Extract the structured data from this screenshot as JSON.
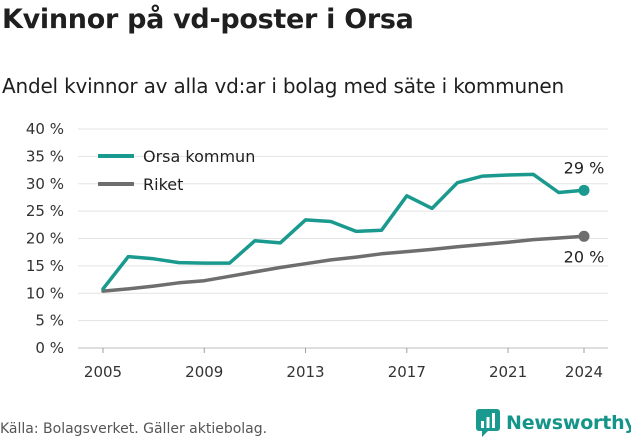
{
  "title": "Kvinnor på vd-poster i Orsa",
  "subtitle": "Andel kvinnor av alla vd:ar i bolag med säte i kommunen",
  "source": "Källa: Bolagsverket. Gäller aktiebolag.",
  "brand": {
    "name": "Newsworthy",
    "color": "#1a9a8e",
    "logo_icon": "bar-chart-icon"
  },
  "chart_data": {
    "type": "line",
    "x": [
      2005,
      2006,
      2007,
      2008,
      2009,
      2010,
      2011,
      2012,
      2013,
      2014,
      2015,
      2016,
      2017,
      2018,
      2019,
      2020,
      2021,
      2022,
      2023,
      2024
    ],
    "series": [
      {
        "name": "Orsa kommun",
        "color": "#1a9a8e",
        "values": [
          10.8,
          16.7,
          16.3,
          15.6,
          15.5,
          15.5,
          19.6,
          19.2,
          23.4,
          23.1,
          21.3,
          21.5,
          27.8,
          25.5,
          30.2,
          31.4,
          31.6,
          31.7,
          28.4,
          28.8
        ],
        "end_label": "29 %"
      },
      {
        "name": "Riket",
        "color": "#6e6e6e",
        "values": [
          10.4,
          10.8,
          11.3,
          11.9,
          12.3,
          13.1,
          13.9,
          14.7,
          15.4,
          16.1,
          16.6,
          17.2,
          17.6,
          18.0,
          18.5,
          18.9,
          19.3,
          19.8,
          20.1,
          20.4
        ],
        "end_label": "20 %"
      }
    ],
    "xticks": [
      "2005",
      "2009",
      "2013",
      "2017",
      "2021",
      "2024"
    ],
    "yticks": [
      "0 %",
      "5 %",
      "10 %",
      "15 %",
      "20 %",
      "25 %",
      "30 %",
      "35 %",
      "40 %"
    ],
    "ylim": [
      0,
      40
    ],
    "xlim": [
      2005,
      2024
    ],
    "grid": true,
    "legend": "top-left"
  }
}
